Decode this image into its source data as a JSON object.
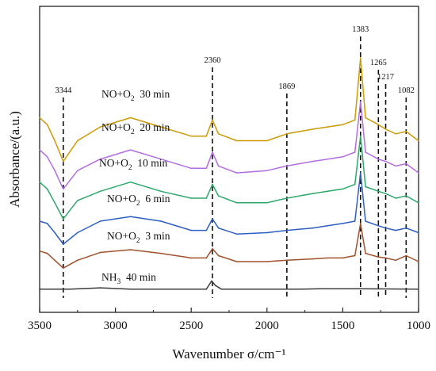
{
  "chart_data": {
    "type": "line",
    "xlabel": "Wavenumber σ/cm⁻¹",
    "ylabel": "Absorbance/(a.u.)",
    "xlim": [
      3500,
      1000
    ],
    "x_reversed": true,
    "x_ticks": [
      "3500",
      "3000",
      "2500",
      "2000",
      "1500",
      "1000"
    ],
    "y_ticks_shown": false,
    "grid": false,
    "peak_markers": [
      {
        "wavenumber": 3344,
        "label": "3344"
      },
      {
        "wavenumber": 2360,
        "label": "2360"
      },
      {
        "wavenumber": 1869,
        "label": "1869"
      },
      {
        "wavenumber": 1383,
        "label": "1383"
      },
      {
        "wavenumber": 1265,
        "label": "1265"
      },
      {
        "wavenumber": 1217,
        "label": "1217"
      },
      {
        "wavenumber": 1082,
        "label": "1082"
      }
    ],
    "series": [
      {
        "name_main": "NH",
        "name_sub": "3",
        "name_tail": "  40 min",
        "color": "#3d3d3d",
        "offset": 0.0,
        "points": [
          [
            3500,
            0.02
          ],
          [
            3300,
            0.02
          ],
          [
            3100,
            0.05
          ],
          [
            2900,
            0.02
          ],
          [
            2400,
            0.02
          ],
          [
            2365,
            0.2
          ],
          [
            2340,
            0.1
          ],
          [
            2300,
            0.02
          ],
          [
            1800,
            0.02
          ],
          [
            1650,
            0.03
          ],
          [
            1500,
            0.03
          ],
          [
            1400,
            0.03
          ],
          [
            1000,
            0.02
          ]
        ]
      },
      {
        "name_main": "NO+O",
        "name_sub": "2",
        "name_tail": "  3 min",
        "color": "#a0522d",
        "offset": 0.6,
        "points": [
          [
            3500,
            0.25
          ],
          [
            3450,
            0.2
          ],
          [
            3400,
            0.05
          ],
          [
            3344,
            -0.12
          ],
          [
            3250,
            0.05
          ],
          [
            3100,
            0.22
          ],
          [
            2900,
            0.28
          ],
          [
            2700,
            0.2
          ],
          [
            2500,
            0.1
          ],
          [
            2400,
            0.1
          ],
          [
            2360,
            0.3
          ],
          [
            2320,
            0.15
          ],
          [
            2200,
            0.02
          ],
          [
            2000,
            0.02
          ],
          [
            1869,
            0.05
          ],
          [
            1700,
            0.08
          ],
          [
            1600,
            0.1
          ],
          [
            1500,
            0.1
          ],
          [
            1420,
            0.15
          ],
          [
            1383,
            0.85
          ],
          [
            1350,
            0.2
          ],
          [
            1265,
            0.12
          ],
          [
            1217,
            0.1
          ],
          [
            1150,
            0.05
          ],
          [
            1082,
            0.15
          ],
          [
            1000,
            0.02
          ]
        ]
      },
      {
        "name_main": "NO+O",
        "name_sub": "2",
        "name_tail": "  6 min",
        "color": "#2e5fc1",
        "offset": 1.2,
        "points": [
          [
            3500,
            0.3
          ],
          [
            3450,
            0.25
          ],
          [
            3400,
            0.05
          ],
          [
            3344,
            -0.2
          ],
          [
            3250,
            0.05
          ],
          [
            3100,
            0.3
          ],
          [
            2900,
            0.4
          ],
          [
            2700,
            0.3
          ],
          [
            2500,
            0.1
          ],
          [
            2400,
            0.1
          ],
          [
            2360,
            0.35
          ],
          [
            2320,
            0.15
          ],
          [
            2200,
            0.02
          ],
          [
            2000,
            0.05
          ],
          [
            1869,
            0.1
          ],
          [
            1700,
            0.15
          ],
          [
            1600,
            0.2
          ],
          [
            1500,
            0.25
          ],
          [
            1420,
            0.3
          ],
          [
            1383,
            1.35
          ],
          [
            1350,
            0.3
          ],
          [
            1265,
            0.2
          ],
          [
            1217,
            0.15
          ],
          [
            1150,
            0.1
          ],
          [
            1082,
            0.15
          ],
          [
            1000,
            0.05
          ]
        ]
      },
      {
        "name_main": "NO+O",
        "name_sub": "2",
        "name_tail": "  10 min",
        "color": "#2ea86a",
        "offset": 1.85,
        "points": [
          [
            3500,
            0.5
          ],
          [
            3450,
            0.35
          ],
          [
            3400,
            0.05
          ],
          [
            3344,
            -0.3
          ],
          [
            3250,
            0.1
          ],
          [
            3100,
            0.3
          ],
          [
            2900,
            0.5
          ],
          [
            2700,
            0.3
          ],
          [
            2500,
            0.15
          ],
          [
            2400,
            0.15
          ],
          [
            2360,
            0.45
          ],
          [
            2320,
            0.2
          ],
          [
            2200,
            0.05
          ],
          [
            2000,
            0.05
          ],
          [
            1869,
            0.15
          ],
          [
            1700,
            0.25
          ],
          [
            1600,
            0.3
          ],
          [
            1500,
            0.35
          ],
          [
            1420,
            0.45
          ],
          [
            1383,
            1.5
          ],
          [
            1350,
            0.4
          ],
          [
            1265,
            0.3
          ],
          [
            1217,
            0.25
          ],
          [
            1150,
            0.15
          ],
          [
            1082,
            0.2
          ],
          [
            1000,
            0.05
          ]
        ]
      },
      {
        "name_main": "NO+O",
        "name_sub": "2",
        "name_tail": "  20 min",
        "color": "#b26ee0",
        "offset": 2.5,
        "points": [
          [
            3500,
            0.55
          ],
          [
            3450,
            0.4
          ],
          [
            3400,
            0.1
          ],
          [
            3344,
            -0.3
          ],
          [
            3250,
            0.1
          ],
          [
            3100,
            0.35
          ],
          [
            2900,
            0.55
          ],
          [
            2700,
            0.35
          ],
          [
            2500,
            0.15
          ],
          [
            2400,
            0.15
          ],
          [
            2360,
            0.5
          ],
          [
            2320,
            0.2
          ],
          [
            2200,
            0.05
          ],
          [
            2000,
            0.1
          ],
          [
            1869,
            0.2
          ],
          [
            1700,
            0.3
          ],
          [
            1600,
            0.35
          ],
          [
            1500,
            0.4
          ],
          [
            1420,
            0.5
          ],
          [
            1383,
            1.6
          ],
          [
            1350,
            0.5
          ],
          [
            1265,
            0.35
          ],
          [
            1217,
            0.3
          ],
          [
            1150,
            0.2
          ],
          [
            1082,
            0.25
          ],
          [
            1000,
            0.05
          ]
        ]
      },
      {
        "name_main": "NO+O",
        "name_sub": "2",
        "name_tail": "  30 min",
        "color": "#cc9a06",
        "offset": 3.15,
        "points": [
          [
            3500,
            0.6
          ],
          [
            3450,
            0.45
          ],
          [
            3400,
            0.1
          ],
          [
            3344,
            -0.35
          ],
          [
            3250,
            0.1
          ],
          [
            3100,
            0.4
          ],
          [
            2900,
            0.6
          ],
          [
            2700,
            0.4
          ],
          [
            2500,
            0.2
          ],
          [
            2400,
            0.2
          ],
          [
            2360,
            0.55
          ],
          [
            2320,
            0.25
          ],
          [
            2200,
            0.1
          ],
          [
            2000,
            0.1
          ],
          [
            1869,
            0.25
          ],
          [
            1700,
            0.35
          ],
          [
            1600,
            0.4
          ],
          [
            1500,
            0.45
          ],
          [
            1420,
            0.55
          ],
          [
            1383,
            1.9
          ],
          [
            1350,
            0.6
          ],
          [
            1265,
            0.45
          ],
          [
            1217,
            0.35
          ],
          [
            1150,
            0.25
          ],
          [
            1082,
            0.3
          ],
          [
            1000,
            0.1
          ]
        ]
      }
    ]
  }
}
